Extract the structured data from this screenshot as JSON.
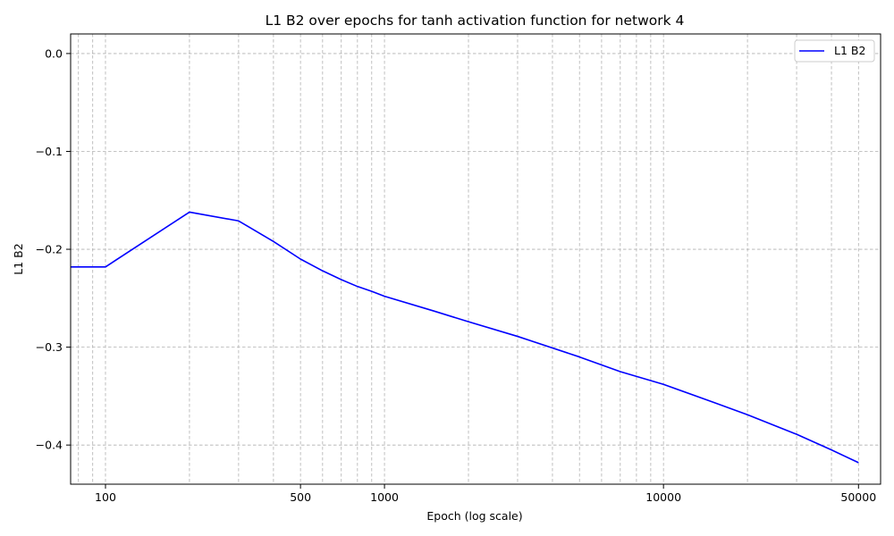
{
  "chart_data": {
    "type": "line",
    "title": "L1 B2 over epochs for tanh activation function for network 4",
    "xlabel": "Epoch (log scale)",
    "ylabel": "L1 B2",
    "x_scale": "log",
    "xlim": [
      75,
      60000
    ],
    "ylim": [
      -0.44,
      0.02
    ],
    "x_ticks": [
      100,
      500,
      1000,
      10000,
      50000
    ],
    "x_tick_labels": [
      "100",
      "500",
      "1000",
      "10000",
      "50000"
    ],
    "y_ticks": [
      0.0,
      -0.1,
      -0.2,
      -0.3,
      -0.4
    ],
    "y_tick_labels": [
      "0.0",
      "−0.1",
      "−0.2",
      "−0.3",
      "−0.4"
    ],
    "grid": true,
    "legend_position": "top-right",
    "series": [
      {
        "name": "L1 B2",
        "color": "#0000ff",
        "x": [
          1,
          100,
          200,
          300,
          400,
          500,
          600,
          700,
          800,
          900,
          1000,
          1500,
          2000,
          3000,
          5000,
          7000,
          10000,
          15000,
          20000,
          30000,
          40000,
          50000
        ],
        "y": [
          -0.218,
          -0.218,
          -0.162,
          -0.171,
          -0.192,
          -0.21,
          -0.222,
          -0.231,
          -0.238,
          -0.243,
          -0.248,
          -0.263,
          -0.274,
          -0.289,
          -0.31,
          -0.325,
          -0.338,
          -0.356,
          -0.369,
          -0.389,
          -0.405,
          -0.418
        ]
      }
    ]
  }
}
